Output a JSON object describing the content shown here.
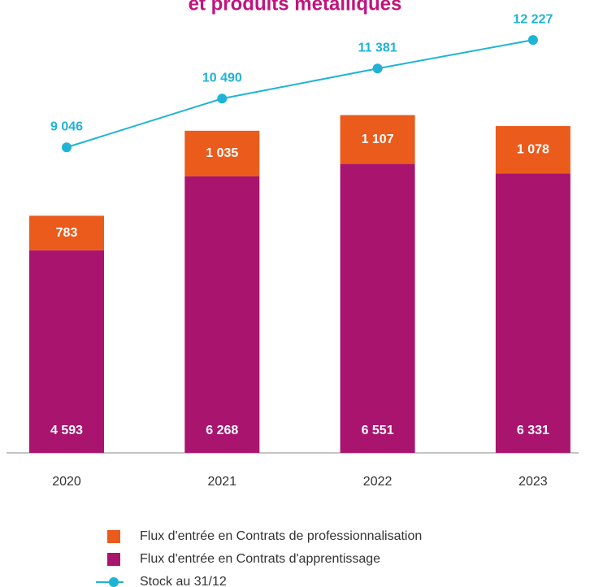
{
  "chart_data": {
    "type": "bar",
    "title": "et produits métalliques",
    "stacked": true,
    "categories": [
      "2020",
      "2021",
      "2022",
      "2023"
    ],
    "ylim": [
      0,
      8000
    ],
    "y2lim": [
      0,
      13000
    ],
    "series": [
      {
        "name": "Flux d'entrée en Contrats d'apprentissage",
        "type": "bar",
        "color": "#a9146f",
        "values": [
          4593,
          6268,
          6551,
          6331
        ],
        "value_labels": [
          "4 593",
          "6 268",
          "6 551",
          "6 331"
        ]
      },
      {
        "name": "Flux d'entrée en Contrats de professionnalisation",
        "type": "bar",
        "color": "#ea5b1c",
        "values": [
          783,
          1035,
          1107,
          1078
        ],
        "value_labels": [
          "783",
          "1 035",
          "1 107",
          "1 078"
        ]
      },
      {
        "name": "Stock au 31/12",
        "type": "line",
        "axis": "y2",
        "color": "#1fb3d6",
        "values": [
          9046,
          10490,
          11381,
          12227
        ],
        "value_labels": [
          "9 046",
          "10 490",
          "11 381",
          "12 227"
        ]
      }
    ]
  }
}
